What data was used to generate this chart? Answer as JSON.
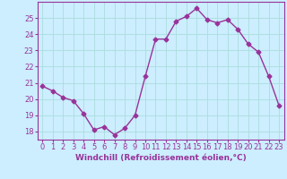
{
  "x": [
    0,
    1,
    2,
    3,
    4,
    5,
    6,
    7,
    8,
    9,
    10,
    11,
    12,
    13,
    14,
    15,
    16,
    17,
    18,
    19,
    20,
    21,
    22,
    23
  ],
  "y": [
    20.8,
    20.5,
    20.1,
    19.9,
    19.1,
    18.1,
    18.3,
    17.8,
    18.2,
    19.0,
    21.4,
    23.7,
    23.7,
    24.8,
    25.1,
    25.6,
    24.9,
    24.7,
    24.9,
    24.3,
    23.4,
    22.9,
    21.4,
    19.6
  ],
  "line_color": "#993399",
  "marker": "D",
  "marker_size": 2.5,
  "line_width": 1.0,
  "bg_color": "#cceeff",
  "grid_color": "#aadddd",
  "xlabel": "Windchill (Refroidissement éolien,°C)",
  "xlabel_color": "#993399",
  "xlabel_fontsize": 6.5,
  "tick_color": "#993399",
  "tick_fontsize": 6.0,
  "ylim": [
    17.5,
    26.0
  ],
  "yticks": [
    18,
    19,
    20,
    21,
    22,
    23,
    24,
    25
  ],
  "xticks": [
    0,
    1,
    2,
    3,
    4,
    5,
    6,
    7,
    8,
    9,
    10,
    11,
    12,
    13,
    14,
    15,
    16,
    17,
    18,
    19,
    20,
    21,
    22,
    23
  ],
  "spine_color": "#993399",
  "xlim": [
    -0.5,
    23.5
  ]
}
